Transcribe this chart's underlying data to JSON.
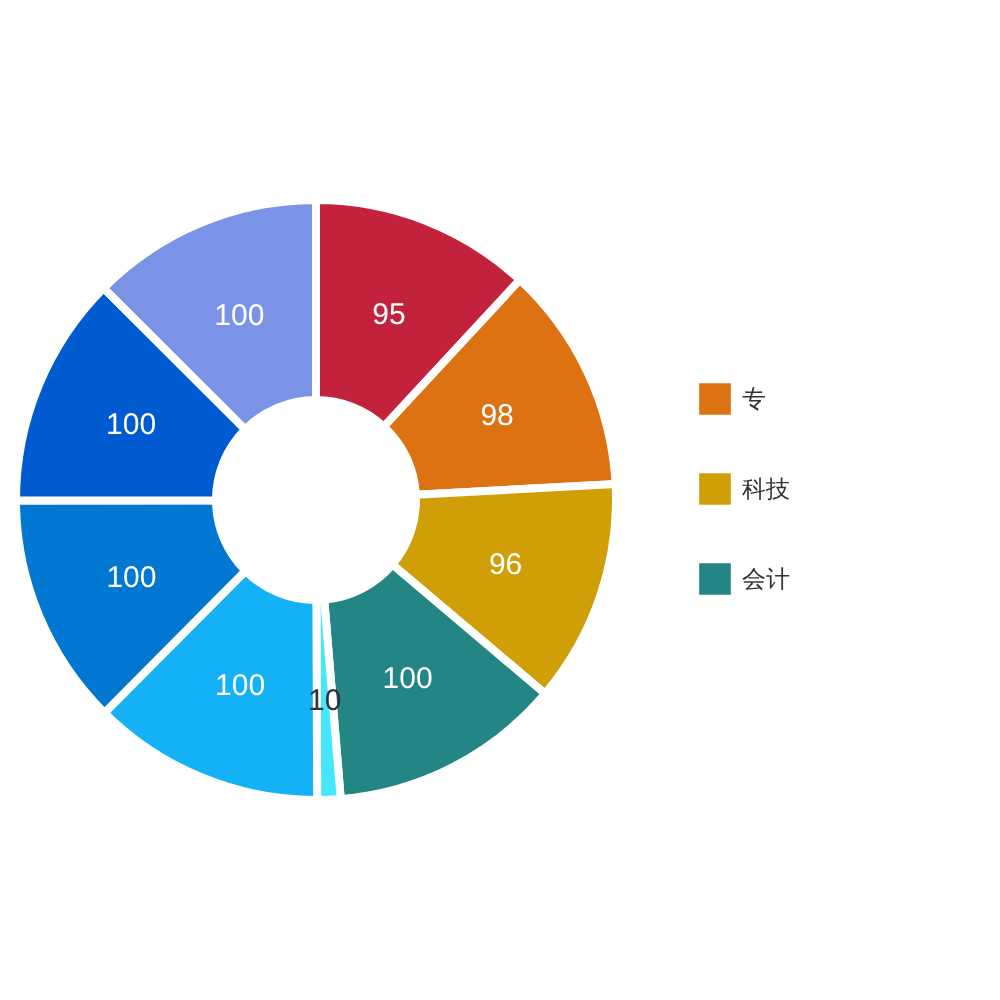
{
  "chart_data": {
    "type": "donut",
    "categories": [
      null,
      "专",
      "科技",
      "会计",
      null,
      null,
      null,
      null,
      null
    ],
    "values": [
      95,
      98,
      96,
      100,
      10,
      100,
      100,
      100,
      100
    ],
    "colors": [
      "#c2223c",
      "#dc7212",
      "#d09f08",
      "#238584",
      "#46e6fe",
      "#14b1f6",
      "#0077d0",
      "#005ad0",
      "#7b93e6"
    ],
    "data_labels": true,
    "legend": "right"
  }
}
